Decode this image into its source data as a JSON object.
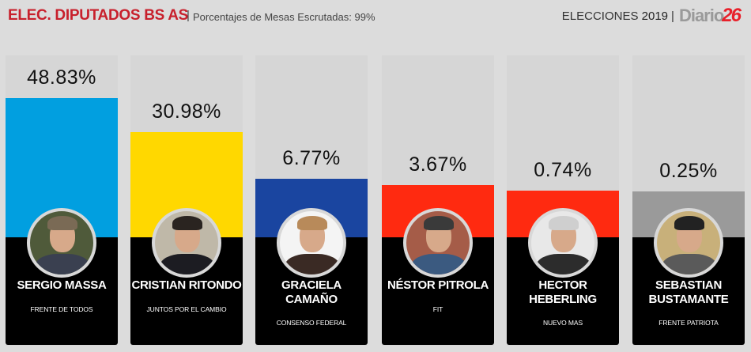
{
  "header": {
    "title": "ELEC. DIPUTADOS BS AS",
    "separator": "|",
    "subtitle": "Porcentajes de Mesas Escrutadas: 99%",
    "elections_label": "ELECCIONES",
    "year": "2019",
    "pipe": "|",
    "logo_text": "Diario",
    "logo_number": "26"
  },
  "candidates": [
    {
      "percent": "48.83%",
      "name_line1": "SERGIO MASSA",
      "name_line2": "",
      "party": "FRENTE DE TODOS",
      "color": "#019fe0"
    },
    {
      "percent": "30.98%",
      "name_line1": "CRISTIAN RITONDO",
      "name_line2": "",
      "party": "JUNTOS POR EL CAMBIO",
      "color": "#ffd800"
    },
    {
      "percent": "6.77%",
      "name_line1": "GRACIELA",
      "name_line2": "CAMAÑO",
      "party": "CONSENSO FEDERAL",
      "color": "#1a45a0"
    },
    {
      "percent": "3.67%",
      "name_line1": "NÉSTOR PITROLA",
      "name_line2": "",
      "party": "FIT",
      "color": "#ff2a10"
    },
    {
      "percent": "0.74%",
      "name_line1": "HECTOR",
      "name_line2": "HEBERLING",
      "party": "NUEVO MAS",
      "color": "#ff2a10"
    },
    {
      "percent": "0.25%",
      "name_line1": "SEBASTIAN",
      "name_line2": "BUSTAMANTE",
      "party": "FRENTE PATRIOTA",
      "color": "#9a9a9a"
    }
  ],
  "chart_data": {
    "type": "bar",
    "title": "ELEC. DIPUTADOS BS AS",
    "subtitle": "Porcentajes de Mesas Escrutadas: 99%",
    "categories": [
      "SERGIO MASSA",
      "CRISTIAN RITONDO",
      "GRACIELA CAMAÑO",
      "NÉSTOR PITROLA",
      "HECTOR HEBERLING",
      "SEBASTIAN BUSTAMANTE"
    ],
    "parties": [
      "FRENTE DE TODOS",
      "JUNTOS POR EL CAMBIO",
      "CONSENSO FEDERAL",
      "FIT",
      "NUEVO MAS",
      "FRENTE PATRIOTA"
    ],
    "values": [
      48.83,
      30.98,
      6.77,
      3.67,
      0.74,
      0.25
    ],
    "colors": [
      "#019fe0",
      "#ffd800",
      "#1a45a0",
      "#ff2a10",
      "#ff2a10",
      "#9a9a9a"
    ],
    "xlabel": "",
    "ylabel": "%",
    "grid": false,
    "legend": "none"
  }
}
